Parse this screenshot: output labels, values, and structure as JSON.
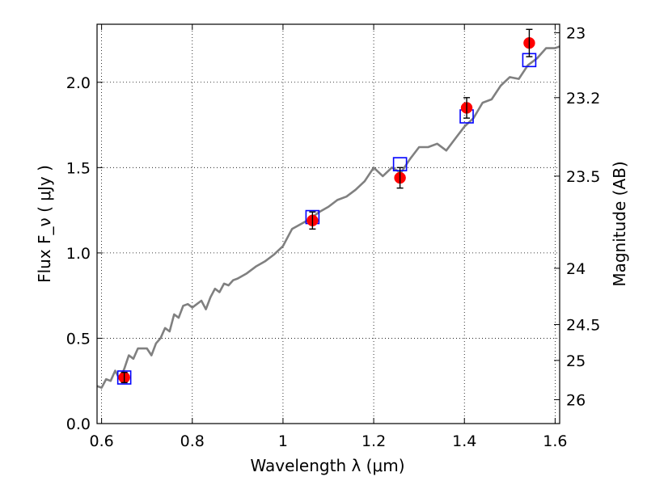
{
  "chart_data": {
    "type": "scatter",
    "xlabel": "Wavelength  λ (μm)",
    "ylabel": "Flux  F_ν  ( μJy )",
    "y2label": "Magnitude (AB)",
    "xlim": [
      0.59,
      1.61
    ],
    "ylim": [
      0.0,
      2.34
    ],
    "grid": true,
    "x_ticks": [
      0.6,
      0.8,
      1.0,
      1.2,
      1.4,
      1.6
    ],
    "x_tick_labels": [
      "0.6",
      "0.8",
      "1",
      "1.2",
      "1.4",
      "1.6"
    ],
    "y_ticks": [
      0.0,
      0.5,
      1.0,
      1.5,
      2.0
    ],
    "y_tick_labels": [
      "0.0",
      "0.5",
      "1.0",
      "1.5",
      "2.0"
    ],
    "y2_ticks": [
      {
        "label": "23",
        "flux": 2.29
      },
      {
        "label": "23.2",
        "flux": 1.91
      },
      {
        "label": "23.5",
        "flux": 1.45
      },
      {
        "label": "24",
        "flux": 0.91
      },
      {
        "label": "24.5",
        "flux": 0.58
      },
      {
        "label": "25",
        "flux": 0.37
      },
      {
        "label": "26",
        "flux": 0.14
      }
    ],
    "series": [
      {
        "style": "line",
        "color": "#808080",
        "x": [
          0.59,
          0.6,
          0.61,
          0.62,
          0.63,
          0.64,
          0.65,
          0.66,
          0.67,
          0.68,
          0.69,
          0.7,
          0.71,
          0.72,
          0.73,
          0.74,
          0.75,
          0.76,
          0.77,
          0.78,
          0.79,
          0.8,
          0.81,
          0.82,
          0.83,
          0.84,
          0.85,
          0.86,
          0.87,
          0.88,
          0.89,
          0.9,
          0.92,
          0.94,
          0.96,
          0.98,
          1.0,
          1.02,
          1.04,
          1.06,
          1.08,
          1.1,
          1.12,
          1.14,
          1.16,
          1.18,
          1.2,
          1.22,
          1.24,
          1.26,
          1.28,
          1.3,
          1.32,
          1.34,
          1.36,
          1.38,
          1.4,
          1.42,
          1.44,
          1.46,
          1.48,
          1.5,
          1.52,
          1.54,
          1.56,
          1.58,
          1.6,
          1.61
        ],
        "y": [
          0.22,
          0.21,
          0.26,
          0.25,
          0.31,
          0.26,
          0.32,
          0.4,
          0.38,
          0.44,
          0.44,
          0.44,
          0.4,
          0.47,
          0.5,
          0.56,
          0.54,
          0.64,
          0.62,
          0.69,
          0.7,
          0.68,
          0.7,
          0.72,
          0.67,
          0.74,
          0.79,
          0.77,
          0.82,
          0.81,
          0.84,
          0.85,
          0.88,
          0.92,
          0.95,
          0.99,
          1.04,
          1.14,
          1.17,
          1.2,
          1.24,
          1.27,
          1.31,
          1.33,
          1.37,
          1.42,
          1.5,
          1.45,
          1.5,
          1.47,
          1.55,
          1.62,
          1.62,
          1.64,
          1.6,
          1.67,
          1.74,
          1.79,
          1.88,
          1.9,
          1.98,
          2.03,
          2.02,
          2.1,
          2.14,
          2.2,
          2.2,
          2.21
        ]
      },
      {
        "style": "square-open",
        "color": "#0000ff",
        "x": [
          0.65,
          1.065,
          1.258,
          1.405,
          1.543
        ],
        "y": [
          0.27,
          1.21,
          1.52,
          1.8,
          2.13
        ]
      },
      {
        "style": "circle-filled",
        "color": "#ff0000",
        "x": [
          0.65,
          1.065,
          1.258,
          1.405,
          1.543
        ],
        "y": [
          0.27,
          1.19,
          1.44,
          1.85,
          2.23
        ],
        "yerr": [
          0.03,
          0.05,
          0.06,
          0.06,
          0.08
        ]
      }
    ]
  }
}
